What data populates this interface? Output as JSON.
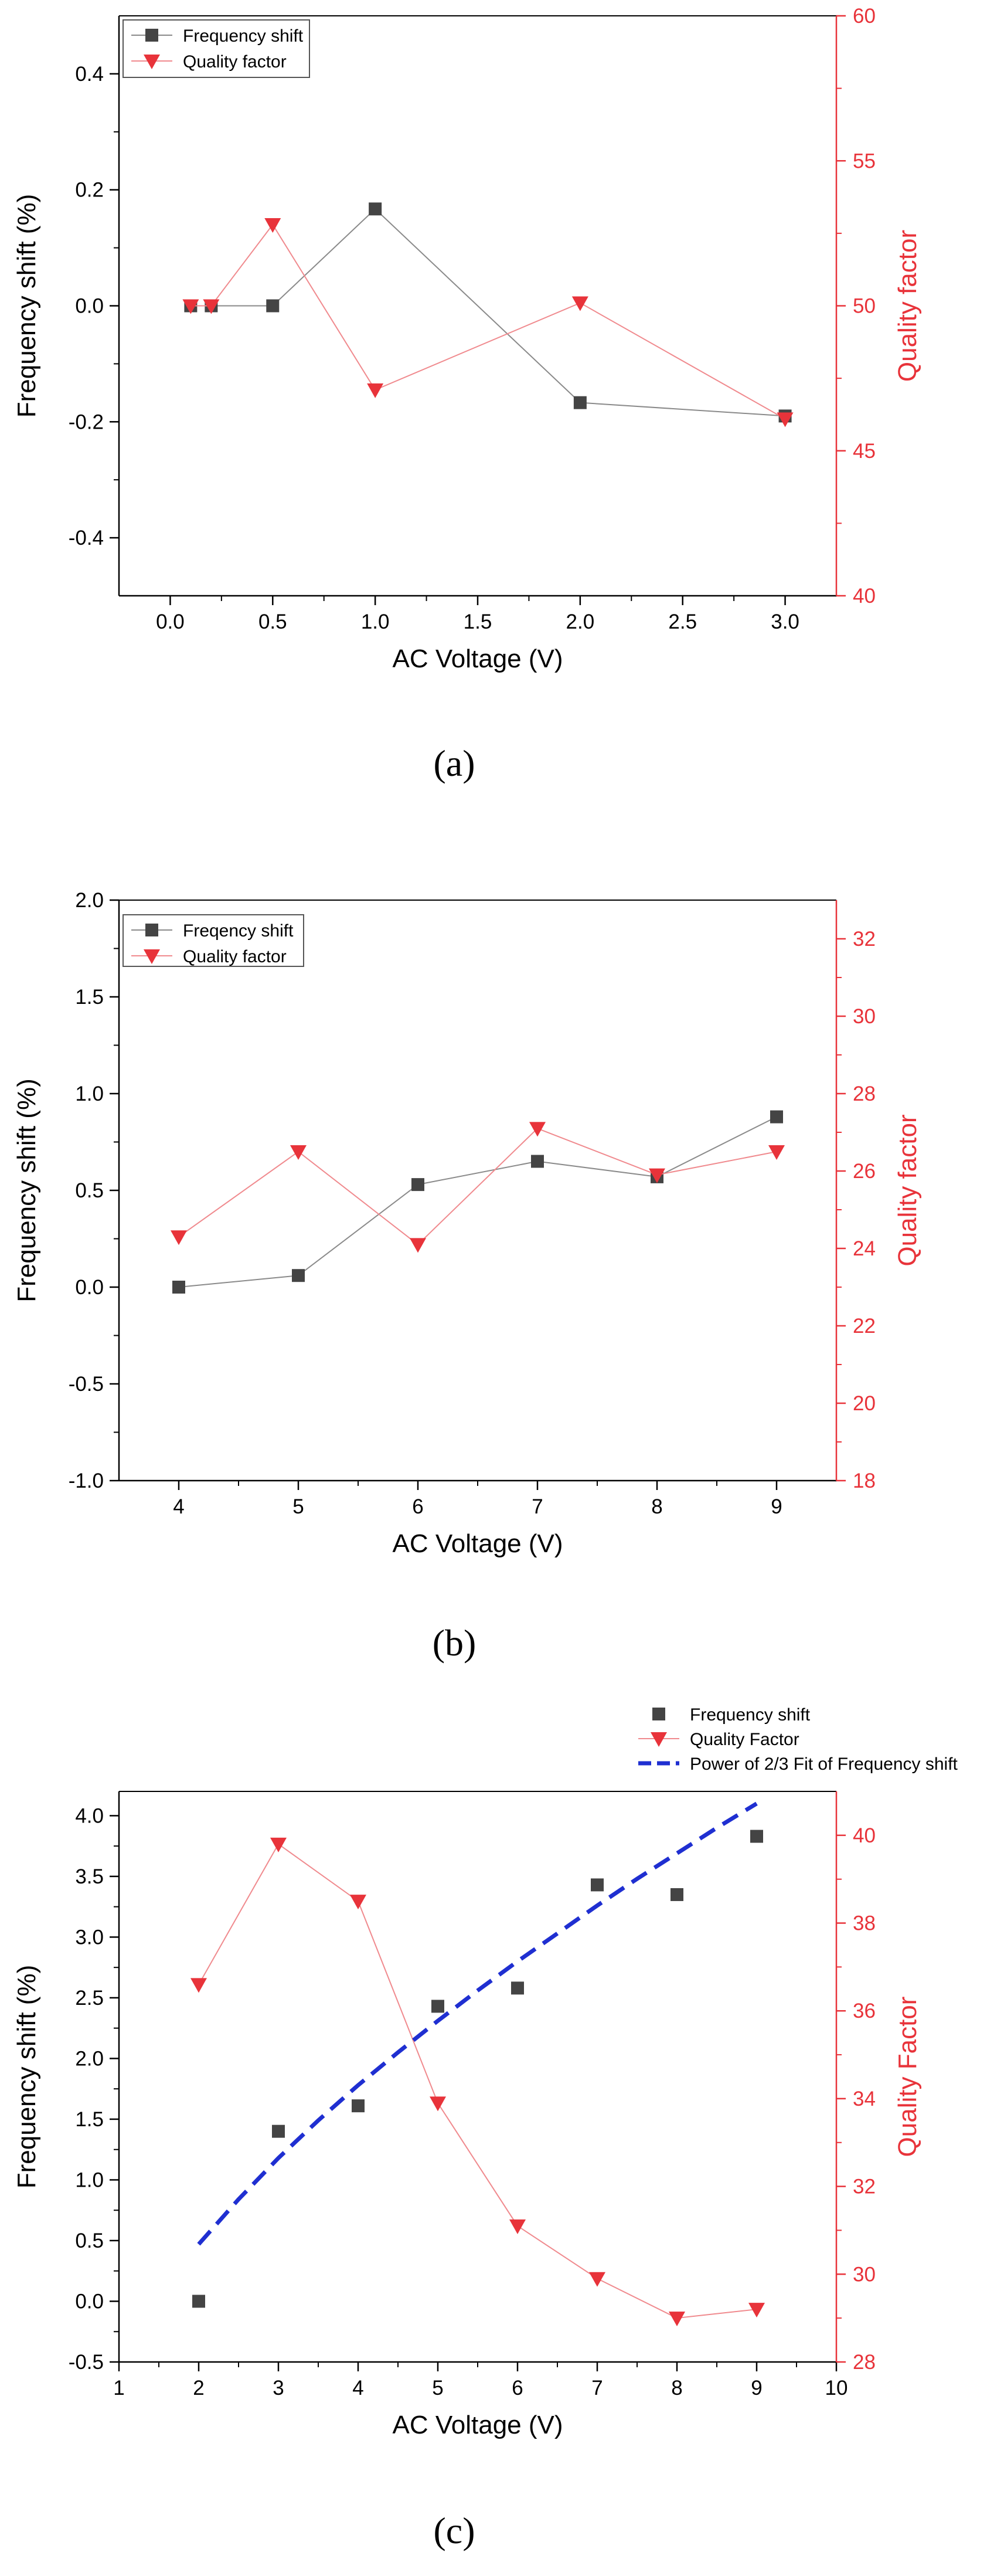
{
  "chart_data": [
    {
      "type": "line",
      "panel_label": "(a)",
      "xlabel": "AC Voltage (V)",
      "ylabel": "Frequency shift (%)",
      "y2label": "Quality factor",
      "xlim": [
        -0.25,
        3.25
      ],
      "ylim": [
        -0.5,
        0.5
      ],
      "y2lim": [
        40,
        60
      ],
      "xticks": [
        0.0,
        0.5,
        1.0,
        1.5,
        2.0,
        2.5,
        3.0
      ],
      "xtick_labels": [
        "0.0",
        "0.5",
        "1.0",
        "1.5",
        "2.0",
        "2.5",
        "3.0"
      ],
      "yticks": [
        -0.4,
        -0.2,
        0.0,
        0.2,
        0.4
      ],
      "ytick_labels": [
        "-0.4",
        "-0.2",
        "0.0",
        "0.2",
        "0.4"
      ],
      "y2ticks": [
        40,
        45,
        50,
        55,
        60
      ],
      "y2tick_labels": [
        "40",
        "45",
        "50",
        "55",
        "60"
      ],
      "legend_position": "top-left",
      "series": [
        {
          "name": "Frequency shift",
          "axis": "left",
          "marker": "square",
          "color": "#444444",
          "x": [
            0.1,
            0.2,
            0.5,
            1.0,
            2.0,
            3.0
          ],
          "values": [
            0.0,
            0.0,
            0.0,
            0.167,
            -0.167,
            -0.19
          ]
        },
        {
          "name": "Quality factor",
          "axis": "right",
          "marker": "triangle-down",
          "color": "#e8333a",
          "x": [
            0.1,
            0.2,
            0.5,
            1.0,
            2.0,
            3.0
          ],
          "values": [
            50.0,
            50.0,
            52.8,
            47.1,
            50.1,
            46.1
          ]
        }
      ]
    },
    {
      "type": "line",
      "panel_label": "(b)",
      "xlabel": "AC Voltage (V)",
      "ylabel": "Frequency shift (%)",
      "y2label": "Quality factor",
      "xlim": [
        3.5,
        9.5
      ],
      "ylim": [
        -1.0,
        2.0
      ],
      "y2lim": [
        18,
        33
      ],
      "xticks": [
        4,
        5,
        6,
        7,
        8,
        9
      ],
      "xtick_labels": [
        "4",
        "5",
        "6",
        "7",
        "8",
        "9"
      ],
      "yticks": [
        -1.0,
        -0.5,
        0.0,
        0.5,
        1.0,
        1.5,
        2.0
      ],
      "ytick_labels": [
        "-1.0",
        "-0.5",
        "0.0",
        "0.5",
        "1.0",
        "1.5",
        "2.0"
      ],
      "y2ticks": [
        18,
        20,
        22,
        24,
        26,
        28,
        30,
        32
      ],
      "y2tick_labels": [
        "18",
        "20",
        "22",
        "24",
        "26",
        "28",
        "30",
        "32"
      ],
      "legend_position": "top-left",
      "series": [
        {
          "name": "Freqency shift",
          "axis": "left",
          "marker": "square",
          "color": "#444444",
          "x": [
            4,
            5,
            6,
            7,
            8,
            9
          ],
          "values": [
            0.0,
            0.06,
            0.53,
            0.65,
            0.57,
            0.88
          ]
        },
        {
          "name": "Quality factor",
          "axis": "right",
          "marker": "triangle-down",
          "color": "#e8333a",
          "x": [
            4,
            5,
            6,
            7,
            8,
            9
          ],
          "values": [
            24.3,
            26.5,
            24.1,
            27.1,
            25.9,
            26.5
          ]
        }
      ]
    },
    {
      "type": "scatter",
      "panel_label": "(c)",
      "xlabel": "AC Voltage (V)",
      "ylabel": "Frequency shift (%)",
      "y2label": "Quality Factor",
      "xlim": [
        1,
        10
      ],
      "ylim": [
        -0.5,
        4.2
      ],
      "y2lim": [
        28,
        41
      ],
      "xticks": [
        1,
        2,
        3,
        4,
        5,
        6,
        7,
        8,
        9,
        10
      ],
      "xtick_labels": [
        "1",
        "2",
        "3",
        "4",
        "5",
        "6",
        "7",
        "8",
        "9",
        "10"
      ],
      "yticks": [
        -0.5,
        0.0,
        0.5,
        1.0,
        1.5,
        2.0,
        2.5,
        3.0,
        3.5,
        4.0
      ],
      "ytick_labels": [
        "-0.5",
        "0.0",
        "0.5",
        "1.0",
        "1.5",
        "2.0",
        "2.5",
        "3.0",
        "3.5",
        "4.0"
      ],
      "y2ticks": [
        28,
        30,
        32,
        34,
        36,
        38,
        40
      ],
      "y2tick_labels": [
        "28",
        "30",
        "32",
        "34",
        "36",
        "38",
        "40"
      ],
      "legend_position": "above-right",
      "series": [
        {
          "name": "Frequency shift",
          "axis": "left",
          "marker": "square",
          "color": "#444444",
          "line": false,
          "x": [
            2,
            3,
            4,
            5,
            6,
            7,
            8,
            9
          ],
          "values": [
            0.0,
            1.4,
            1.61,
            2.43,
            2.58,
            3.43,
            3.35,
            3.83
          ]
        },
        {
          "name": "Quality Factor",
          "axis": "right",
          "marker": "triangle-down",
          "color": "#e8333a",
          "x": [
            2,
            3,
            4,
            5,
            6,
            7,
            8,
            9
          ],
          "values": [
            36.6,
            39.8,
            38.5,
            33.9,
            31.1,
            29.9,
            29.0,
            29.2
          ]
        },
        {
          "name": "Power of 2/3 Fit of Frequency shift",
          "axis": "left",
          "style": "dashed-fit",
          "color": "#1f2fd1",
          "x": [
            2.0,
            2.5,
            3.0,
            3.5,
            4.0,
            4.5,
            5.0,
            5.5,
            6.0,
            6.5,
            7.0,
            7.5,
            8.0,
            8.5,
            9.0
          ],
          "values": [
            0.47,
            0.84,
            1.18,
            1.49,
            1.78,
            2.05,
            2.31,
            2.56,
            2.8,
            3.03,
            3.26,
            3.48,
            3.69,
            3.9,
            4.1
          ]
        }
      ]
    }
  ]
}
